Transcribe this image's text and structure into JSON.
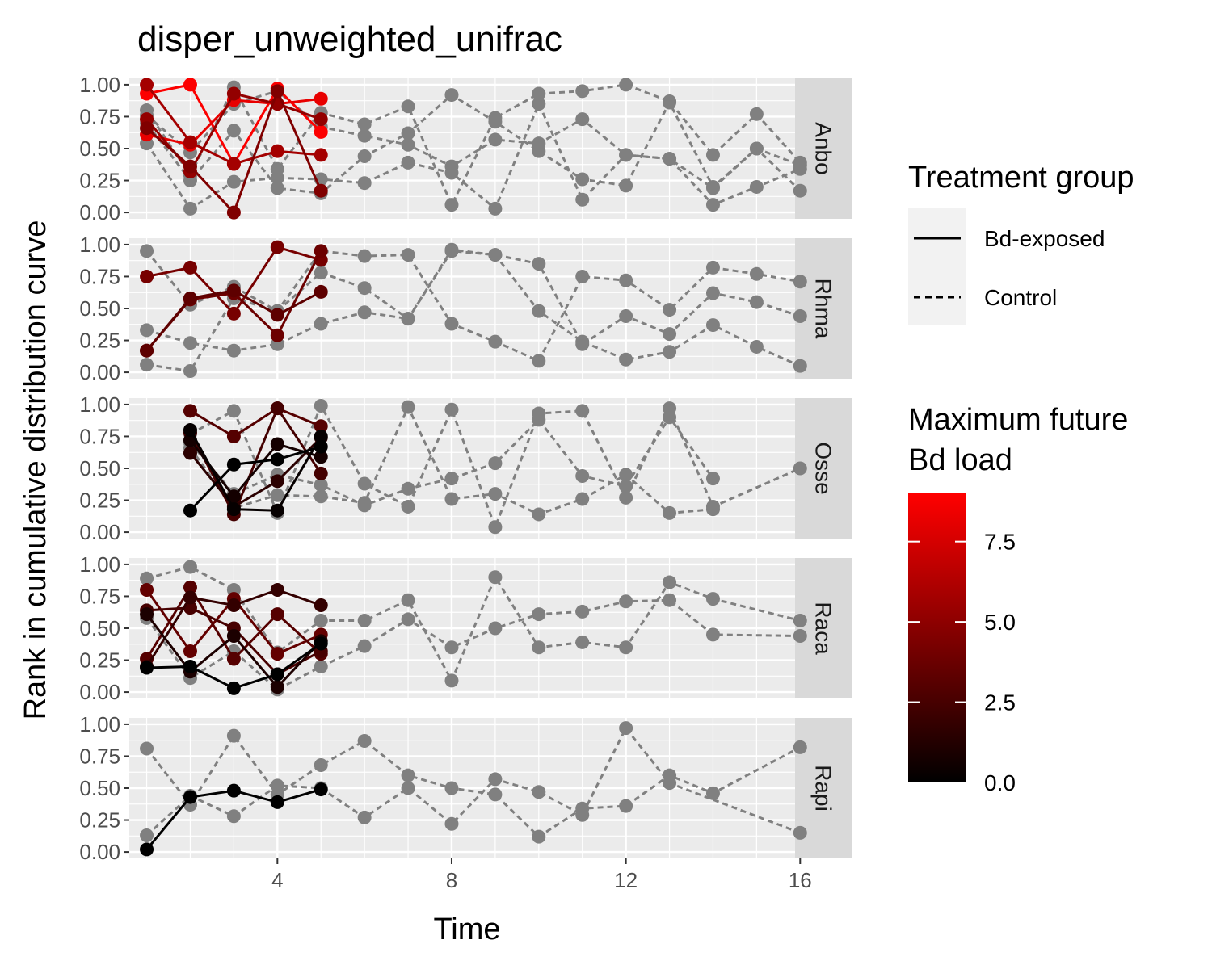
{
  "chart_data": {
    "type": "line",
    "title": "disper_unweighted_unifrac",
    "xlabel": "Time",
    "ylabel": "Rank in cumulative distribution curve",
    "xlim": [
      0.6,
      17.2
    ],
    "ylim": [
      -0.05,
      1.05
    ],
    "x_ticks": [
      4,
      8,
      12,
      16
    ],
    "x_tick_labels": [
      "4",
      "8",
      "12",
      "16"
    ],
    "y_ticks": [
      0,
      0.25,
      0.5,
      0.75,
      1
    ],
    "y_tick_labels": [
      "0.00",
      "0.25",
      "0.50",
      "0.75",
      "1.00"
    ],
    "grid": true,
    "legend_placement": "right",
    "facets": [
      "Anbo",
      "Rhma",
      "Osse",
      "Raca",
      "Rapi"
    ],
    "treatment_legend": {
      "title": "Treatment group",
      "entries": [
        {
          "label": "Bd-exposed",
          "linetype": "solid"
        },
        {
          "label": "Control",
          "linetype": "dashed"
        }
      ]
    },
    "colorbar": {
      "title_lines": [
        "Maximum future",
        "Bd load"
      ],
      "range": [
        0,
        9
      ],
      "ticks": [
        0,
        2.5,
        5,
        7.5
      ],
      "tick_labels": [
        "0.0",
        "2.5",
        "5.0",
        "7.5"
      ],
      "low_color": "#000000",
      "high_color": "#ff0000"
    },
    "control_color": "#808080",
    "series": [
      {
        "facet": "Anbo",
        "group": "Bd-exposed",
        "load": 8.9,
        "x": [
          1,
          2,
          3,
          4,
          5
        ],
        "y": [
          0.93,
          1.0,
          0.38,
          0.97,
          0.63
        ]
      },
      {
        "facet": "Anbo",
        "group": "Bd-exposed",
        "load": 8.2,
        "x": [
          1,
          2,
          3,
          4,
          5
        ],
        "y": [
          0.61,
          0.53,
          0.88,
          0.85,
          0.89
        ]
      },
      {
        "facet": "Anbo",
        "group": "Bd-exposed",
        "load": 5.8,
        "x": [
          1,
          2,
          3,
          4,
          5
        ],
        "y": [
          1.0,
          0.55,
          0.38,
          0.48,
          0.45
        ]
      },
      {
        "facet": "Anbo",
        "group": "Bd-exposed",
        "load": 5.2,
        "x": [
          1,
          2,
          3,
          4,
          5
        ],
        "y": [
          0.73,
          0.32,
          0.93,
          0.85,
          0.73
        ]
      },
      {
        "facet": "Anbo",
        "group": "Bd-exposed",
        "load": 4.5,
        "x": [
          1,
          2,
          3,
          4,
          5
        ],
        "y": [
          0.66,
          0.36,
          0.0,
          0.95,
          0.17
        ]
      },
      {
        "facet": "Anbo",
        "group": "Control",
        "load": null,
        "x": [
          1,
          2,
          3,
          4,
          5,
          6,
          7,
          8,
          9,
          10,
          11,
          12,
          13,
          14,
          15,
          16
        ],
        "y": [
          0.8,
          0.29,
          0.98,
          0.34,
          0.78,
          0.69,
          0.83,
          0.06,
          0.74,
          0.93,
          0.95,
          1.0,
          0.87,
          0.45,
          0.77,
          0.39
        ]
      },
      {
        "facet": "Anbo",
        "group": "Control",
        "load": null,
        "x": [
          1,
          2,
          3,
          4,
          5,
          6,
          7,
          8,
          9,
          10,
          11,
          12,
          13,
          14,
          15,
          16
        ],
        "y": [
          0.7,
          0.25,
          0.64,
          0.19,
          0.15,
          0.44,
          0.62,
          0.92,
          0.71,
          0.48,
          0.26,
          0.21,
          0.86,
          0.2,
          0.5,
          0.17
        ]
      },
      {
        "facet": "Anbo",
        "group": "Control",
        "load": null,
        "x": [
          1,
          2,
          3,
          4,
          5,
          6,
          7,
          8,
          9,
          10,
          11,
          12,
          13,
          14,
          15,
          16
        ],
        "y": [
          0.54,
          0.03,
          0.24,
          0.27,
          0.26,
          0.23,
          0.39,
          0.31,
          0.03,
          0.85,
          0.1,
          0.45,
          0.42,
          0.06,
          0.2,
          0.34
        ]
      },
      {
        "facet": "Anbo",
        "group": "Control",
        "load": null,
        "x": [
          1,
          2,
          3,
          4,
          5,
          6,
          7,
          8,
          9,
          10,
          11,
          12,
          13,
          14,
          15,
          16
        ],
        "y": [
          0.76,
          0.47,
          0.85,
          0.95,
          0.67,
          0.6,
          0.53,
          0.36,
          0.57,
          0.54,
          0.73,
          0.45,
          0.42,
          0.19,
          0.5,
          0.37
        ]
      },
      {
        "facet": "Rhma",
        "group": "Bd-exposed",
        "load": 4.2,
        "x": [
          1,
          2,
          3,
          4,
          5
        ],
        "y": [
          0.75,
          0.82,
          0.46,
          0.98,
          0.88
        ]
      },
      {
        "facet": "Rhma",
        "group": "Bd-exposed",
        "load": 3.8,
        "x": [
          1,
          2,
          3,
          4,
          5
        ],
        "y": [
          0.17,
          0.57,
          0.62,
          0.29,
          0.95
        ]
      },
      {
        "facet": "Rhma",
        "group": "Bd-exposed",
        "load": 3.3,
        "x": [
          1,
          2,
          3,
          4,
          5
        ],
        "y": [
          0.17,
          0.58,
          0.64,
          0.45,
          0.63
        ]
      },
      {
        "facet": "Rhma",
        "group": "Control",
        "load": null,
        "x": [
          1,
          2,
          3,
          4,
          5,
          6,
          7,
          8,
          9,
          10,
          11,
          12,
          13,
          14,
          15,
          16
        ],
        "y": [
          0.95,
          0.53,
          0.67,
          0.48,
          0.95,
          0.91,
          0.92,
          0.38,
          0.24,
          0.09,
          0.75,
          0.72,
          0.49,
          0.82,
          0.77,
          0.71
        ]
      },
      {
        "facet": "Rhma",
        "group": "Control",
        "load": null,
        "x": [
          1,
          2,
          3,
          4,
          5,
          6,
          7,
          8,
          9,
          10,
          11,
          12,
          13,
          14,
          15,
          16
        ],
        "y": [
          0.33,
          0.23,
          0.17,
          0.22,
          0.38,
          0.47,
          0.42,
          0.96,
          0.92,
          0.85,
          0.22,
          0.44,
          0.3,
          0.62,
          0.55,
          0.44
        ]
      },
      {
        "facet": "Rhma",
        "group": "Control",
        "load": null,
        "x": [
          1,
          2,
          3,
          4,
          5,
          6,
          7,
          8,
          9,
          10,
          11,
          12,
          13,
          14,
          15,
          16
        ],
        "y": [
          0.06,
          0.01,
          0.58,
          0.48,
          0.78,
          0.66,
          0.42,
          0.95,
          0.92,
          0.48,
          0.24,
          0.1,
          0.16,
          0.37,
          0.2,
          0.05
        ]
      },
      {
        "facet": "Osse",
        "group": "Bd-exposed",
        "load": 3.0,
        "x": [
          2,
          3,
          4,
          5
        ],
        "y": [
          0.95,
          0.75,
          0.97,
          0.83
        ]
      },
      {
        "facet": "Osse",
        "group": "Bd-exposed",
        "load": 2.4,
        "x": [
          2,
          3,
          4,
          5
        ],
        "y": [
          0.78,
          0.14,
          0.97,
          0.46
        ]
      },
      {
        "facet": "Osse",
        "group": "Bd-exposed",
        "load": 1.5,
        "x": [
          2,
          3,
          4,
          5
        ],
        "y": [
          0.62,
          0.2,
          0.4,
          0.74
        ]
      },
      {
        "facet": "Osse",
        "group": "Bd-exposed",
        "load": 0.7,
        "x": [
          2,
          3,
          4,
          5
        ],
        "y": [
          0.72,
          0.28,
          0.69,
          0.59
        ]
      },
      {
        "facet": "Osse",
        "group": "Bd-exposed",
        "load": 0.2,
        "x": [
          2,
          3,
          4,
          5
        ],
        "y": [
          0.8,
          0.18,
          0.17,
          0.75
        ]
      },
      {
        "facet": "Osse",
        "group": "Bd-exposed",
        "load": 0.0,
        "x": [
          2,
          3,
          4,
          5
        ],
        "y": [
          0.17,
          0.53,
          0.57,
          0.67
        ]
      },
      {
        "facet": "Osse",
        "group": "Control",
        "load": null,
        "x": [
          2,
          3,
          4,
          5,
          6,
          7,
          8,
          9,
          10,
          11,
          12,
          13,
          14,
          16
        ],
        "y": [
          0.77,
          0.95,
          0.15,
          0.99,
          0.38,
          0.2,
          0.96,
          0.04,
          0.93,
          0.95,
          0.27,
          0.97,
          0.2,
          0.5
        ]
      },
      {
        "facet": "Osse",
        "group": "Control",
        "load": null,
        "x": [
          2,
          3,
          4,
          5,
          6,
          7,
          8,
          9,
          10,
          11,
          12,
          13,
          14
        ],
        "y": [
          0.66,
          0.19,
          0.29,
          0.28,
          0.23,
          0.98,
          0.26,
          0.3,
          0.14,
          0.26,
          0.45,
          0.15,
          0.18
        ]
      },
      {
        "facet": "Osse",
        "group": "Control",
        "load": null,
        "x": [
          2,
          3,
          4,
          5,
          6,
          7,
          8,
          9,
          10,
          11,
          12,
          13,
          14
        ],
        "y": [
          0.7,
          0.3,
          0.45,
          0.37,
          0.21,
          0.34,
          0.42,
          0.54,
          0.88,
          0.44,
          0.36,
          0.9,
          0.42
        ]
      },
      {
        "facet": "Raca",
        "group": "Bd-exposed",
        "load": 3.5,
        "x": [
          1,
          2,
          3,
          4,
          5
        ],
        "y": [
          0.8,
          0.32,
          0.73,
          0.3,
          0.45
        ]
      },
      {
        "facet": "Raca",
        "group": "Bd-exposed",
        "load": 3.0,
        "x": [
          1,
          2,
          3,
          4,
          5
        ],
        "y": [
          0.26,
          0.82,
          0.26,
          0.61,
          0.3
        ]
      },
      {
        "facet": "Raca",
        "group": "Bd-exposed",
        "load": 2.5,
        "x": [
          1,
          2,
          3,
          4,
          5
        ],
        "y": [
          0.64,
          0.66,
          0.5,
          0.14,
          0.32
        ]
      },
      {
        "facet": "Raca",
        "group": "Bd-exposed",
        "load": 1.8,
        "x": [
          1,
          2,
          3,
          4,
          5
        ],
        "y": [
          0.2,
          0.74,
          0.68,
          0.8,
          0.68
        ]
      },
      {
        "facet": "Raca",
        "group": "Bd-exposed",
        "load": 1.0,
        "x": [
          1,
          2,
          3,
          4,
          5
        ],
        "y": [
          0.61,
          0.16,
          0.44,
          0.04,
          0.4
        ]
      },
      {
        "facet": "Raca",
        "group": "Bd-exposed",
        "load": 0.0,
        "x": [
          1,
          2,
          3,
          4,
          5
        ],
        "y": [
          0.19,
          0.2,
          0.03,
          0.14,
          0.38
        ]
      },
      {
        "facet": "Raca",
        "group": "Control",
        "load": null,
        "x": [
          1,
          2,
          3,
          4,
          5,
          6,
          7,
          8,
          9,
          10,
          11,
          12,
          13,
          14,
          16
        ],
        "y": [
          0.89,
          0.98,
          0.8,
          0.31,
          0.56,
          0.56,
          0.72,
          0.09,
          0.9,
          0.35,
          0.39,
          0.35,
          0.86,
          0.73,
          0.56
        ]
      },
      {
        "facet": "Raca",
        "group": "Control",
        "load": null,
        "x": [
          1,
          2,
          3,
          4,
          5,
          6,
          7,
          8,
          9,
          10,
          11,
          12,
          13,
          14,
          16
        ],
        "y": [
          0.58,
          0.11,
          0.32,
          0.02,
          0.2,
          0.36,
          0.57,
          0.35,
          0.5,
          0.61,
          0.63,
          0.71,
          0.72,
          0.45,
          0.44
        ]
      },
      {
        "facet": "Rapi",
        "group": "Bd-exposed",
        "load": 0.0,
        "x": [
          1,
          2,
          3,
          4,
          5
        ],
        "y": [
          0.02,
          0.43,
          0.48,
          0.39,
          0.49
        ]
      },
      {
        "facet": "Rapi",
        "group": "Control",
        "load": null,
        "x": [
          1,
          2,
          3,
          4,
          5,
          6,
          7,
          8,
          9,
          10,
          11,
          12,
          13,
          14,
          16
        ],
        "y": [
          0.81,
          0.37,
          0.91,
          0.45,
          0.68,
          0.87,
          0.6,
          0.5,
          0.45,
          0.12,
          0.34,
          0.36,
          0.6,
          0.46,
          0.82
        ]
      },
      {
        "facet": "Rapi",
        "group": "Control",
        "load": null,
        "x": [
          1,
          2,
          3,
          4,
          5,
          6,
          7,
          8,
          9,
          10,
          11,
          12,
          13,
          16
        ],
        "y": [
          0.13,
          0.44,
          0.28,
          0.52,
          0.5,
          0.27,
          0.5,
          0.22,
          0.57,
          0.47,
          0.29,
          0.97,
          0.54,
          0.15
        ]
      }
    ]
  }
}
